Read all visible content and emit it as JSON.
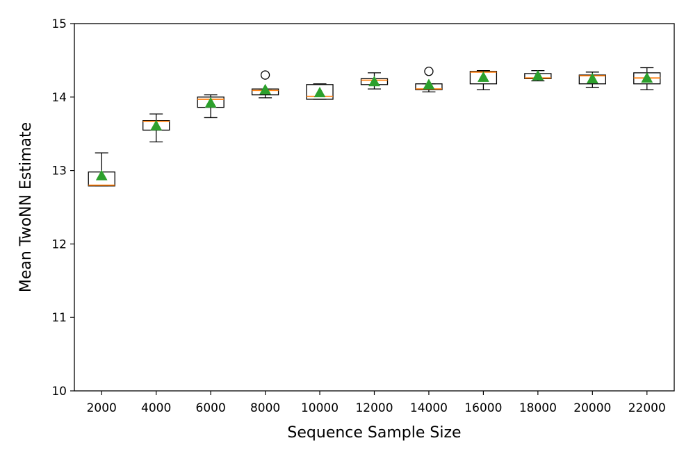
{
  "chart_data": {
    "type": "box",
    "xlabel": "Sequence Sample Size",
    "ylabel": "Mean TwoNN Estimate",
    "ylim": [
      10,
      15
    ],
    "y_ticks": [
      "10",
      "11",
      "12",
      "13",
      "14",
      "15"
    ],
    "grid": false,
    "legend": "none",
    "colors": {
      "median": "#ff7f0e",
      "mean": "#2ca02c",
      "box": "#000000"
    },
    "boxes": [
      {
        "x": "2000",
        "whisker_low": 12.79,
        "q1": 12.79,
        "median": 12.8,
        "q3": 12.98,
        "whisker_high": 13.24,
        "mean": 12.93,
        "outliers": []
      },
      {
        "x": "4000",
        "whisker_low": 13.39,
        "q1": 13.55,
        "median": 13.67,
        "q3": 13.68,
        "whisker_high": 13.77,
        "mean": 13.61,
        "outliers": []
      },
      {
        "x": "6000",
        "whisker_low": 13.72,
        "q1": 13.86,
        "median": 13.97,
        "q3": 14.0,
        "whisker_high": 14.03,
        "mean": 13.92,
        "outliers": []
      },
      {
        "x": "8000",
        "whisker_low": 13.99,
        "q1": 14.03,
        "median": 14.09,
        "q3": 14.11,
        "whisker_high": 14.11,
        "mean": 14.1,
        "outliers": [
          14.3
        ]
      },
      {
        "x": "10000",
        "whisker_low": 13.97,
        "q1": 13.97,
        "median": 14.01,
        "q3": 14.17,
        "whisker_high": 14.18,
        "mean": 14.06,
        "outliers": []
      },
      {
        "x": "12000",
        "whisker_low": 14.11,
        "q1": 14.17,
        "median": 14.23,
        "q3": 14.25,
        "whisker_high": 14.33,
        "mean": 14.21,
        "outliers": []
      },
      {
        "x": "14000",
        "whisker_low": 14.07,
        "q1": 14.1,
        "median": 14.11,
        "q3": 14.18,
        "whisker_high": 14.18,
        "mean": 14.17,
        "outliers": [
          14.35
        ]
      },
      {
        "x": "16000",
        "whisker_low": 14.1,
        "q1": 14.18,
        "median": 14.34,
        "q3": 14.35,
        "whisker_high": 14.36,
        "mean": 14.27,
        "outliers": []
      },
      {
        "x": "18000",
        "whisker_low": 14.22,
        "q1": 14.25,
        "median": 14.26,
        "q3": 14.32,
        "whisker_high": 14.36,
        "mean": 14.29,
        "outliers": []
      },
      {
        "x": "20000",
        "whisker_low": 14.13,
        "q1": 14.18,
        "median": 14.29,
        "q3": 14.3,
        "whisker_high": 14.34,
        "mean": 14.25,
        "outliers": []
      },
      {
        "x": "22000",
        "whisker_low": 14.1,
        "q1": 14.18,
        "median": 14.26,
        "q3": 14.33,
        "whisker_high": 14.4,
        "mean": 14.26,
        "outliers": []
      }
    ]
  }
}
